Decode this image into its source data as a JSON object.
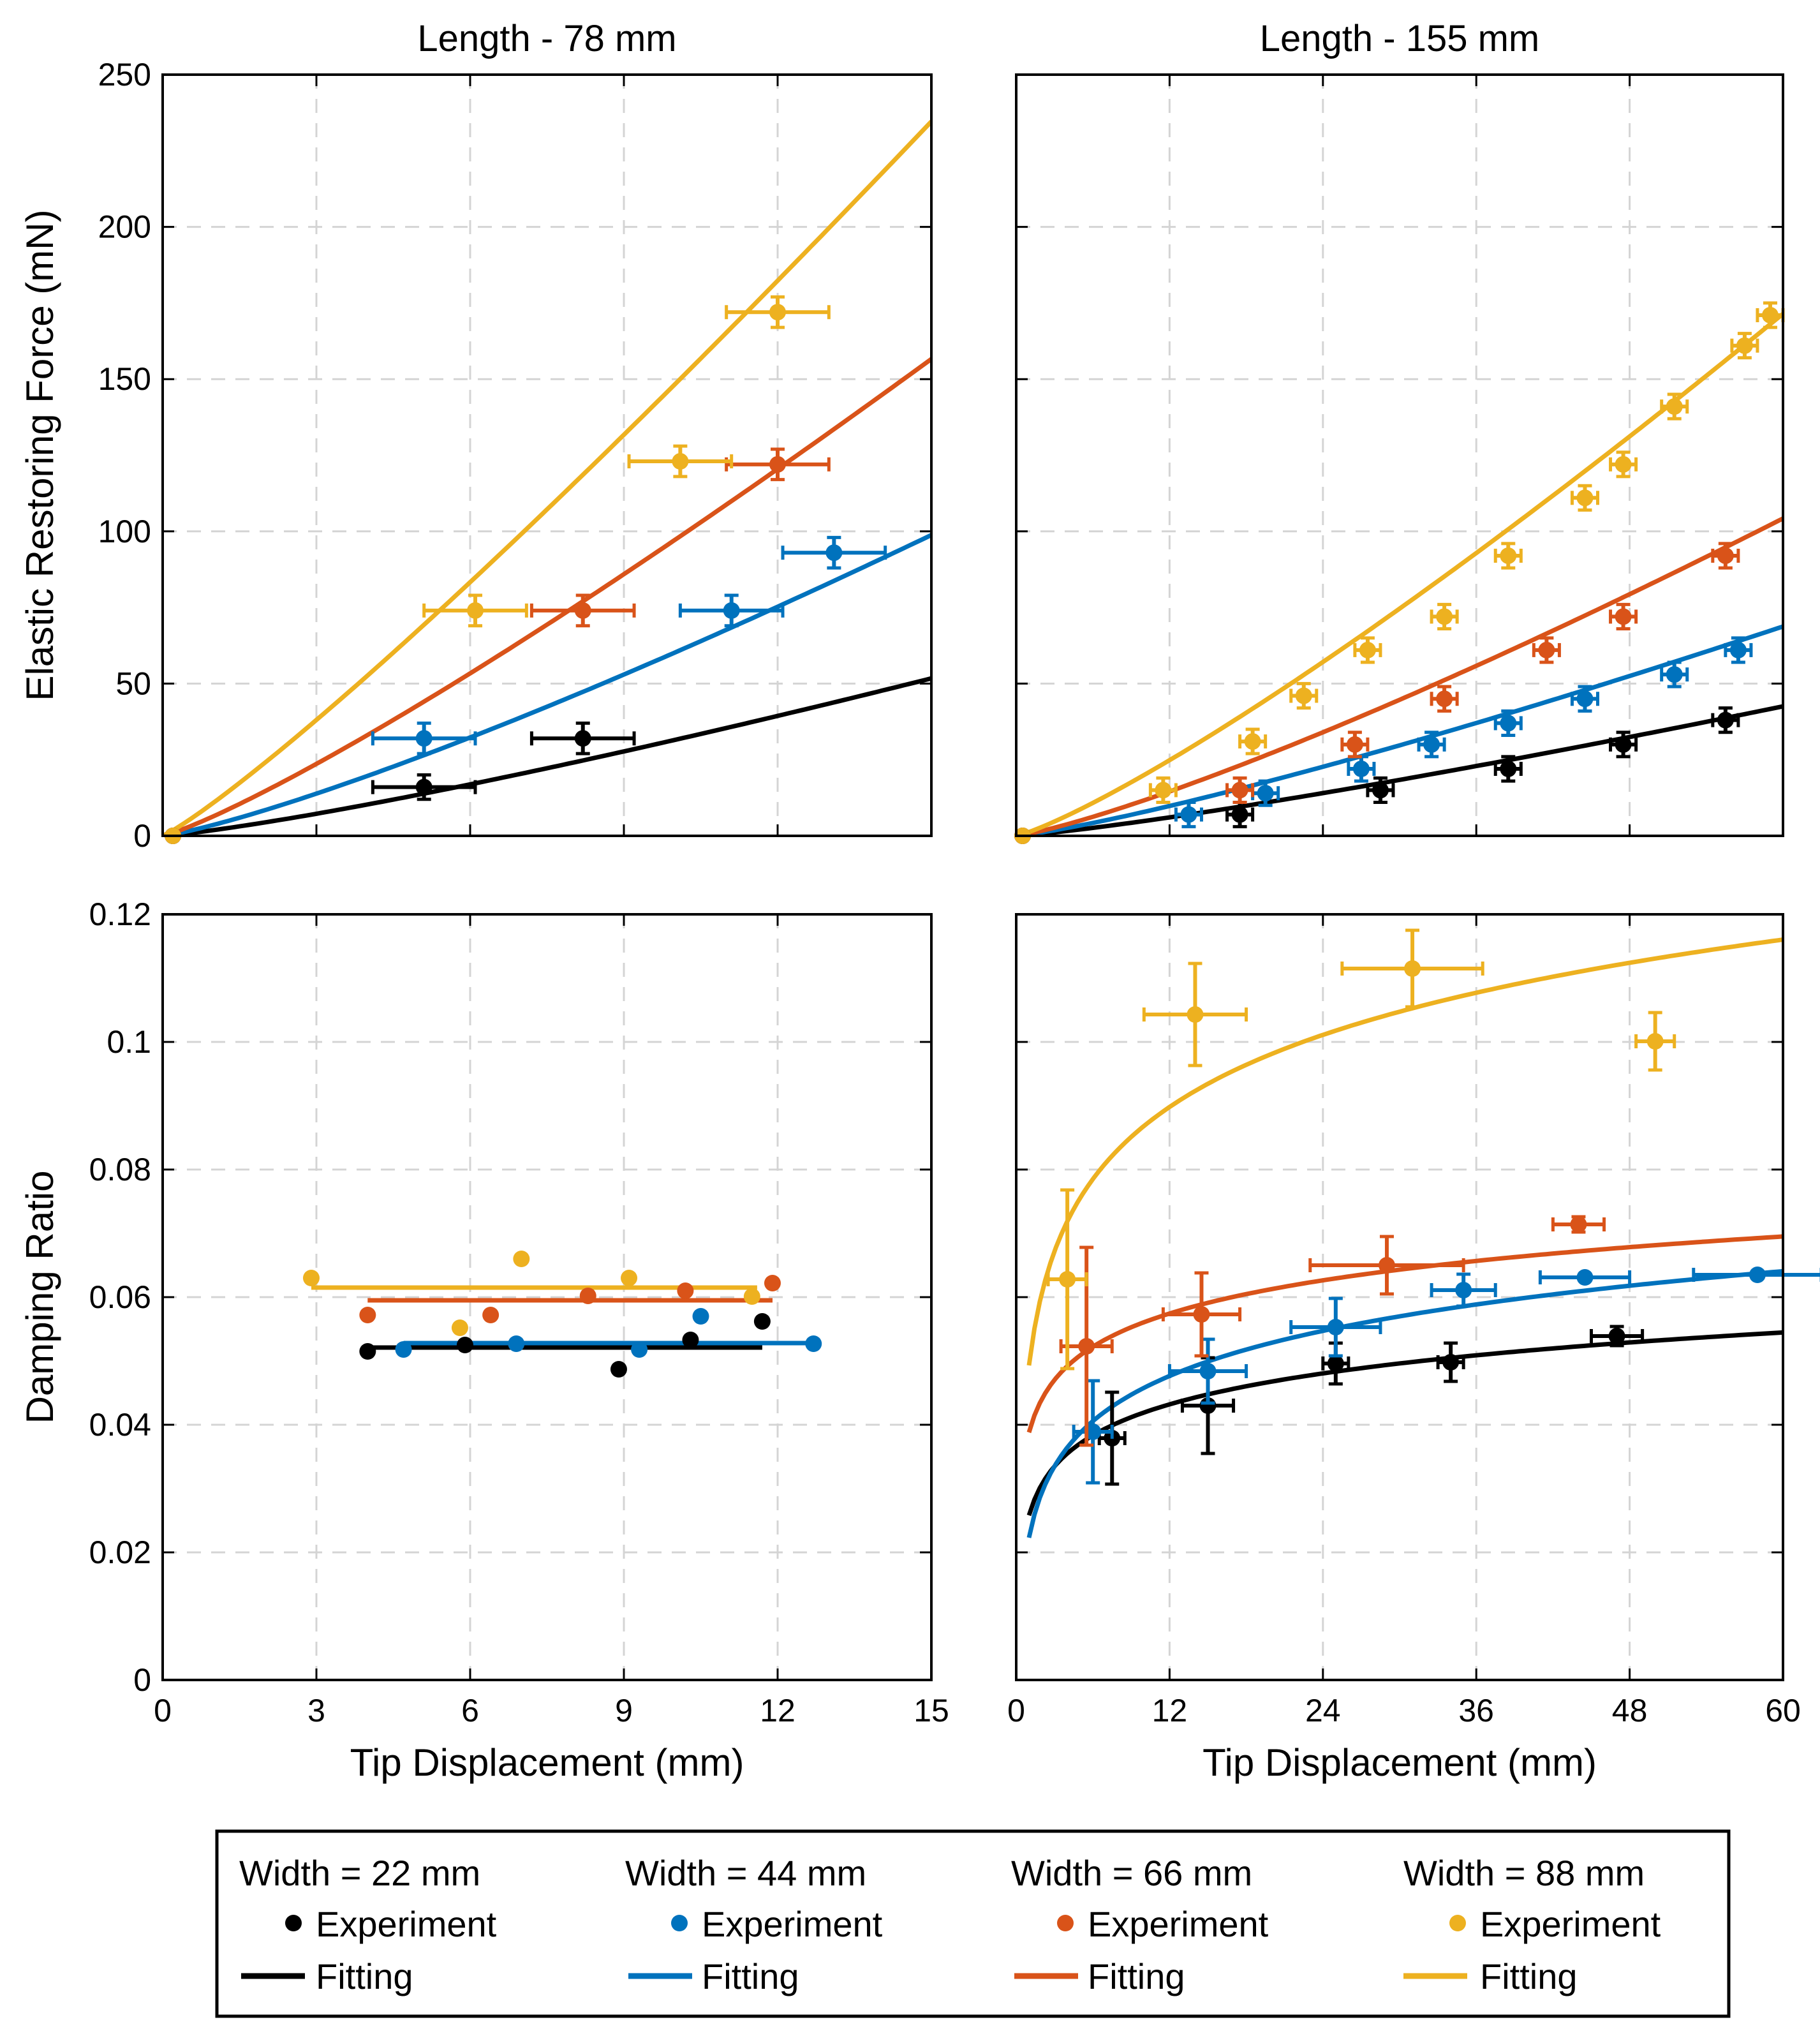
{
  "colors": {
    "w22": "#000000",
    "w44": "#0072BD",
    "w66": "#D95319",
    "w88": "#EDB120"
  },
  "legend": {
    "widths": [
      "Width = 22 mm",
      "Width = 44 mm",
      "Width = 66 mm",
      "Width = 88 mm"
    ],
    "experiment_label": "Experiment",
    "fitting_label": "Fitting"
  },
  "chart_data": [
    {
      "id": "p1",
      "type": "scatter",
      "title": "Length - 78 mm",
      "xlabel": "",
      "ylabel": "Elastic Restoring Force (mN)",
      "xlim": [
        0,
        15
      ],
      "ylim": [
        0,
        250
      ],
      "xticks": [
        0,
        3,
        6,
        9,
        12,
        15
      ],
      "yticks": [
        0,
        50,
        100,
        150,
        200,
        250
      ],
      "xtick_labels": [],
      "ytick_labels": [
        "0",
        "50",
        "100",
        "150",
        "200",
        "250"
      ],
      "grid": true,
      "series": [
        {
          "name": "Width = 22 mm",
          "color": "w22",
          "fit": {
            "form": "power",
            "a": 1.9,
            "b": 1.22
          },
          "points": [
            {
              "x": 0.2,
              "y": 0
            },
            {
              "x": 5.1,
              "y": 16,
              "xerr": 1.0,
              "yerr": 4
            },
            {
              "x": 8.2,
              "y": 32,
              "xerr": 1.0,
              "yerr": 5
            }
          ]
        },
        {
          "name": "Width = 44 mm",
          "color": "w44",
          "fit": {
            "form": "power",
            "a": 3.63,
            "b": 1.22
          },
          "points": [
            {
              "x": 0.2,
              "y": 0
            },
            {
              "x": 5.1,
              "y": 32,
              "xerr": 1.0,
              "yerr": 5
            },
            {
              "x": 11.1,
              "y": 74,
              "xerr": 1.0,
              "yerr": 5
            },
            {
              "x": 13.1,
              "y": 93,
              "xerr": 1.0,
              "yerr": 5
            }
          ]
        },
        {
          "name": "Width = 66 mm",
          "color": "w66",
          "fit": {
            "form": "power",
            "a": 6.5,
            "b": 1.175
          },
          "points": [
            {
              "x": 0.2,
              "y": 0
            },
            {
              "x": 8.2,
              "y": 74,
              "xerr": 1.0,
              "yerr": 5
            },
            {
              "x": 12.0,
              "y": 122,
              "xerr": 1.0,
              "yerr": 5
            }
          ]
        },
        {
          "name": "Width = 88 mm",
          "color": "w88",
          "fit": {
            "form": "power",
            "a": 11.0,
            "b": 1.13
          },
          "points": [
            {
              "x": 0.2,
              "y": 0
            },
            {
              "x": 6.1,
              "y": 74,
              "xerr": 1.0,
              "yerr": 5
            },
            {
              "x": 10.1,
              "y": 123,
              "xerr": 1.0,
              "yerr": 5
            },
            {
              "x": 12.0,
              "y": 172,
              "xerr": 1.0,
              "yerr": 5
            }
          ]
        }
      ]
    },
    {
      "id": "p2",
      "type": "scatter",
      "title": "Length - 155 mm",
      "xlabel": "",
      "ylabel": "",
      "xlim": [
        0,
        60
      ],
      "ylim": [
        0,
        250
      ],
      "xticks": [
        0,
        12,
        24,
        36,
        48,
        60
      ],
      "yticks": [
        0,
        50,
        100,
        150,
        200,
        250
      ],
      "xtick_labels": [],
      "ytick_labels": [],
      "grid": true,
      "series": [
        {
          "name": "Width = 22 mm",
          "color": "w22",
          "fit": {
            "form": "power",
            "a": 0.3,
            "b": 1.21
          },
          "points": [
            {
              "x": 0.5,
              "y": 0
            },
            {
              "x": 17.5,
              "y": 7,
              "xerr": 1.0,
              "yerr": 4
            },
            {
              "x": 28.5,
              "y": 15,
              "xerr": 1.0,
              "yerr": 4
            },
            {
              "x": 38.5,
              "y": 22,
              "xerr": 1.0,
              "yerr": 4
            },
            {
              "x": 47.5,
              "y": 30,
              "xerr": 1.0,
              "yerr": 4
            },
            {
              "x": 55.5,
              "y": 38,
              "xerr": 1.0,
              "yerr": 4
            }
          ]
        },
        {
          "name": "Width = 44 mm",
          "color": "w44",
          "fit": {
            "form": "power",
            "a": 0.485,
            "b": 1.21
          },
          "points": [
            {
              "x": 0.5,
              "y": 0
            },
            {
              "x": 13.5,
              "y": 7,
              "xerr": 1.0,
              "yerr": 4
            },
            {
              "x": 19.5,
              "y": 14,
              "xerr": 1.0,
              "yerr": 4
            },
            {
              "x": 27,
              "y": 22,
              "xerr": 1.0,
              "yerr": 4
            },
            {
              "x": 32.5,
              "y": 30,
              "xerr": 1.0,
              "yerr": 4
            },
            {
              "x": 38.5,
              "y": 37,
              "xerr": 1.0,
              "yerr": 4
            },
            {
              "x": 44.5,
              "y": 45,
              "xerr": 1.0,
              "yerr": 4
            },
            {
              "x": 51.5,
              "y": 53,
              "xerr": 1.0,
              "yerr": 4
            },
            {
              "x": 56.5,
              "y": 61,
              "xerr": 1.0,
              "yerr": 4
            }
          ]
        },
        {
          "name": "Width = 66 mm",
          "color": "w66",
          "fit": {
            "form": "power",
            "a": 0.7,
            "b": 1.222
          },
          "points": [
            {
              "x": 0.5,
              "y": 0
            },
            {
              "x": 17.5,
              "y": 15,
              "xerr": 1.0,
              "yerr": 4
            },
            {
              "x": 26.5,
              "y": 30,
              "xerr": 1.0,
              "yerr": 4
            },
            {
              "x": 33.5,
              "y": 45,
              "xerr": 1.0,
              "yerr": 4
            },
            {
              "x": 41.5,
              "y": 61,
              "xerr": 1.0,
              "yerr": 4
            },
            {
              "x": 47.5,
              "y": 72,
              "xerr": 1.0,
              "yerr": 4
            },
            {
              "x": 55.5,
              "y": 92,
              "xerr": 1.0,
              "yerr": 4
            }
          ]
        },
        {
          "name": "Width = 88 mm",
          "color": "w88",
          "fit": {
            "form": "power",
            "a": 1.26,
            "b": 1.2
          },
          "points": [
            {
              "x": 0.5,
              "y": 0
            },
            {
              "x": 11.5,
              "y": 15,
              "xerr": 1.0,
              "yerr": 4
            },
            {
              "x": 18.5,
              "y": 31,
              "xerr": 1.0,
              "yerr": 4
            },
            {
              "x": 22.5,
              "y": 46,
              "xerr": 1.0,
              "yerr": 4
            },
            {
              "x": 27.5,
              "y": 61,
              "xerr": 1.0,
              "yerr": 4
            },
            {
              "x": 33.5,
              "y": 72,
              "xerr": 1.0,
              "yerr": 4
            },
            {
              "x": 38.5,
              "y": 92,
              "xerr": 1.0,
              "yerr": 4
            },
            {
              "x": 44.5,
              "y": 111,
              "xerr": 1.0,
              "yerr": 4
            },
            {
              "x": 47.5,
              "y": 122,
              "xerr": 1.0,
              "yerr": 4
            },
            {
              "x": 51.5,
              "y": 141,
              "xerr": 1.0,
              "yerr": 4
            },
            {
              "x": 57,
              "y": 161,
              "xerr": 1.0,
              "yerr": 4
            },
            {
              "x": 59,
              "y": 171,
              "xerr": 1.0,
              "yerr": 4
            }
          ]
        }
      ]
    },
    {
      "id": "p3",
      "type": "scatter",
      "title": "",
      "xlabel": "Tip Displacement (mm)",
      "ylabel": "Damping Ratio",
      "xlim": [
        0,
        15
      ],
      "ylim": [
        0,
        0.12
      ],
      "xticks": [
        0,
        3,
        6,
        9,
        12,
        15
      ],
      "yticks": [
        0,
        0.02,
        0.04,
        0.06,
        0.08,
        0.1,
        0.12
      ],
      "xtick_labels": [
        "0",
        "3",
        "6",
        "9",
        "12",
        "15"
      ],
      "ytick_labels": [
        "0",
        "0.02",
        "0.04",
        "0.06",
        "0.08",
        "0.1",
        "0.12"
      ],
      "grid": true,
      "series": [
        {
          "name": "Width = 22 mm",
          "color": "w22",
          "fit": {
            "form": "const",
            "c": 0.0521,
            "x0": 4.0,
            "x1": 11.7
          },
          "points": [
            {
              "x": 4.0,
              "y": 0.0515
            },
            {
              "x": 5.9,
              "y": 0.0525
            },
            {
              "x": 8.9,
              "y": 0.0487
            },
            {
              "x": 10.3,
              "y": 0.0533
            },
            {
              "x": 11.7,
              "y": 0.0562
            }
          ]
        },
        {
          "name": "Width = 44 mm",
          "color": "w44",
          "fit": {
            "form": "const",
            "c": 0.0528,
            "x0": 4.7,
            "x1": 12.7
          },
          "points": [
            {
              "x": 4.7,
              "y": 0.0518
            },
            {
              "x": 6.9,
              "y": 0.0527
            },
            {
              "x": 9.3,
              "y": 0.0518
            },
            {
              "x": 10.5,
              "y": 0.057
            },
            {
              "x": 12.7,
              "y": 0.0527
            }
          ]
        },
        {
          "name": "Width = 66 mm",
          "color": "w66",
          "fit": {
            "form": "const",
            "c": 0.0595,
            "x0": 4.0,
            "x1": 11.9
          },
          "points": [
            {
              "x": 4.0,
              "y": 0.0572
            },
            {
              "x": 6.4,
              "y": 0.0572
            },
            {
              "x": 8.3,
              "y": 0.0602
            },
            {
              "x": 10.2,
              "y": 0.061
            },
            {
              "x": 11.9,
              "y": 0.0622
            }
          ]
        },
        {
          "name": "Width = 88 mm",
          "color": "w88",
          "fit": {
            "form": "const",
            "c": 0.0615,
            "x0": 2.9,
            "x1": 11.6
          },
          "points": [
            {
              "x": 2.9,
              "y": 0.063
            },
            {
              "x": 5.8,
              "y": 0.0552
            },
            {
              "x": 7.0,
              "y": 0.066
            },
            {
              "x": 9.1,
              "y": 0.063
            },
            {
              "x": 11.5,
              "y": 0.0601
            }
          ]
        }
      ]
    },
    {
      "id": "p4",
      "type": "scatter",
      "title": "",
      "xlabel": "Tip Displacement (mm)",
      "ylabel": "",
      "xlim": [
        0,
        60
      ],
      "ylim": [
        0,
        0.12
      ],
      "xticks": [
        0,
        12,
        24,
        36,
        48,
        60
      ],
      "yticks": [
        0,
        0.02,
        0.04,
        0.06,
        0.08,
        0.1,
        0.12
      ],
      "xtick_labels": [
        "0",
        "12",
        "24",
        "36",
        "48",
        "60"
      ],
      "ytick_labels": [],
      "grid": true,
      "series": [
        {
          "name": "Width = 22 mm",
          "color": "w22",
          "fit": {
            "form": "log",
            "a": 0.0258,
            "b": 0.007,
            "x0": 1.0,
            "x1": 60
          },
          "points": [
            {
              "x": 7.5,
              "y": 0.0379,
              "xerr": 1.0,
              "yerr": 0.0072
            },
            {
              "x": 15,
              "y": 0.043,
              "xerr": 2.0,
              "yerr": 0.0075
            },
            {
              "x": 25,
              "y": 0.0496,
              "xerr": 1.0,
              "yerr": 0.0032
            },
            {
              "x": 34,
              "y": 0.0498,
              "xerr": 1.0,
              "yerr": 0.003
            },
            {
              "x": 47,
              "y": 0.0539,
              "xerr": 2.0,
              "yerr": 0.0015
            }
          ]
        },
        {
          "name": "Width = 44 mm",
          "color": "w44",
          "fit": {
            "form": "log",
            "a": 0.0223,
            "b": 0.0102,
            "x0": 1.0,
            "x1": 60
          },
          "points": [
            {
              "x": 6.0,
              "y": 0.0389,
              "xerr": 1.5,
              "yerr": 0.008
            },
            {
              "x": 15,
              "y": 0.0484,
              "xerr": 3.0,
              "yerr": 0.005
            },
            {
              "x": 25,
              "y": 0.0553,
              "xerr": 3.5,
              "yerr": 0.0045
            },
            {
              "x": 35,
              "y": 0.0611,
              "xerr": 2.5,
              "yerr": 0.0025
            },
            {
              "x": 44.5,
              "y": 0.0631,
              "xerr": 3.5,
              "yerr": 0.0005
            },
            {
              "x": 58,
              "y": 0.0635,
              "xerr": 5.0,
              "yerr": 0.0005
            }
          ]
        },
        {
          "name": "Width = 66 mm",
          "color": "w66",
          "fit": {
            "form": "log",
            "a": 0.0388,
            "b": 0.0075,
            "x0": 1.0,
            "x1": 60
          },
          "points": [
            {
              "x": 5.5,
              "y": 0.0523,
              "xerr": 2.0,
              "yerr": 0.0155
            },
            {
              "x": 14.5,
              "y": 0.0573,
              "xerr": 3.0,
              "yerr": 0.0065
            },
            {
              "x": 29,
              "y": 0.065,
              "xerr": 6.0,
              "yerr": 0.0045
            },
            {
              "x": 44,
              "y": 0.0714,
              "xerr": 2.0,
              "yerr": 0.0012
            }
          ]
        },
        {
          "name": "Width = 88 mm",
          "color": "w88",
          "fit": {
            "form": "log",
            "a": 0.0493,
            "b": 0.0163,
            "x0": 1.0,
            "x1": 60
          },
          "points": [
            {
              "x": 4.0,
              "y": 0.0628,
              "xerr": 1.5,
              "yerr": 0.014
            },
            {
              "x": 14,
              "y": 0.1043,
              "xerr": 4.0,
              "yerr": 0.008
            },
            {
              "x": 31,
              "y": 0.1115,
              "xerr": 5.5,
              "yerr": 0.006
            },
            {
              "x": 50,
              "y": 0.1001,
              "xerr": 1.5,
              "yerr": 0.0045
            }
          ]
        }
      ]
    }
  ]
}
